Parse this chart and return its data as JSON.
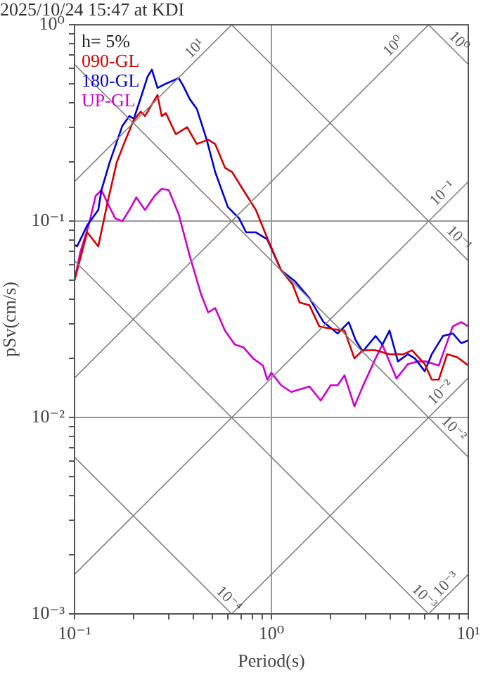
{
  "chart_data": {
    "type": "line",
    "title": "2025/10/24 15:47 at KDI",
    "xlabel": "Period(s)",
    "ylabel": "pSv(cm/s)",
    "log": "xy",
    "grid": true,
    "legend": "top left",
    "marker": "none",
    "line_style": "solid",
    "xlim": [
      0.1,
      10
    ],
    "ylim": [
      0.001,
      1
    ],
    "xticks": [
      {
        "value": 0.1,
        "label": "10⁻¹"
      },
      {
        "value": 0.2,
        "label": null
      },
      {
        "value": 0.3,
        "label": null
      },
      {
        "value": 0.4,
        "label": null
      },
      {
        "value": 0.5,
        "label": null
      },
      {
        "value": 0.6,
        "label": null
      },
      {
        "value": 0.7,
        "label": null
      },
      {
        "value": 0.8,
        "label": null
      },
      {
        "value": 0.9,
        "label": null
      },
      {
        "value": 1,
        "label": "10⁰"
      },
      {
        "value": 2,
        "label": null
      },
      {
        "value": 3,
        "label": null
      },
      {
        "value": 4,
        "label": null
      },
      {
        "value": 5,
        "label": null
      },
      {
        "value": 6,
        "label": null
      },
      {
        "value": 7,
        "label": null
      },
      {
        "value": 8,
        "label": null
      },
      {
        "value": 9,
        "label": null
      },
      {
        "value": 10,
        "label": "10¹"
      }
    ],
    "yticks": [
      {
        "value": 0.001,
        "label": "10⁻³"
      },
      {
        "value": 0.002,
        "label": null
      },
      {
        "value": 0.003,
        "label": null
      },
      {
        "value": 0.004,
        "label": null
      },
      {
        "value": 0.005,
        "label": null
      },
      {
        "value": 0.006,
        "label": null
      },
      {
        "value": 0.007,
        "label": null
      },
      {
        "value": 0.008,
        "label": null
      },
      {
        "value": 0.009,
        "label": null
      },
      {
        "value": 0.01,
        "label": "10⁻²"
      },
      {
        "value": 0.02,
        "label": null
      },
      {
        "value": 0.03,
        "label": null
      },
      {
        "value": 0.04,
        "label": null
      },
      {
        "value": 0.05,
        "label": null
      },
      {
        "value": 0.06,
        "label": null
      },
      {
        "value": 0.07,
        "label": null
      },
      {
        "value": 0.08,
        "label": null
      },
      {
        "value": 0.09,
        "label": null
      },
      {
        "value": 0.1,
        "label": "10⁻¹"
      },
      {
        "value": 0.2,
        "label": null
      },
      {
        "value": 0.3,
        "label": null
      },
      {
        "value": 0.4,
        "label": null
      },
      {
        "value": 0.5,
        "label": null
      },
      {
        "value": 0.6,
        "label": null
      },
      {
        "value": 0.7,
        "label": null
      },
      {
        "value": 0.8,
        "label": null
      },
      {
        "value": 0.9,
        "label": null
      },
      {
        "value": 1,
        "label": "10⁰"
      }
    ],
    "annotations": [
      "h= 5%",
      {
        "text": "10¹",
        "x": 0.44,
        "y": 0.7
      },
      {
        "text": "10⁰",
        "x": 4.5,
        "y": 0.72
      },
      {
        "text": "10⁰",
        "x": 8.3,
        "y": 0.76
      },
      {
        "text": "10⁻¹",
        "x": 8,
        "y": 0.128
      },
      {
        "text": "10⁻¹",
        "x": 8.3,
        "y": 0.0756
      },
      {
        "text": "10⁻²",
        "x": 7.81,
        "y": 0.0124
      },
      {
        "text": "10⁻²",
        "x": 7.81,
        "y": 0.0081
      },
      {
        "text": "10⁻³",
        "x": 8.34,
        "y": 0.00131
      },
      {
        "text": "10⁻³",
        "x": 5.53,
        "y": 0.00113
      },
      {
        "text": "10⁻⁴",
        "x": 0.563,
        "y": 0.0011
      }
    ],
    "series": [
      {
        "color": "#808080",
        "x": [
          0.1,
          0.628
        ],
        "values": [
          0.159,
          1
        ]
      },
      {
        "color": "#808080",
        "x": [
          0.1,
          6.28
        ],
        "values": [
          0.0159,
          1
        ]
      },
      {
        "color": "#808080",
        "x": [
          0.1,
          10
        ],
        "values": [
          0.00159,
          0.159
        ]
      },
      {
        "color": "#808080",
        "x": [
          0.628,
          10
        ],
        "values": [
          0.001,
          0.0159
        ]
      },
      {
        "color": "#808080",
        "x": [
          6.28,
          10
        ],
        "values": [
          0.001,
          0.00159
        ]
      },
      {
        "color": "#808080",
        "x": [
          6.28,
          10
        ],
        "values": [
          1,
          0.628
        ]
      },
      {
        "color": "#808080",
        "x": [
          0.628,
          10
        ],
        "values": [
          1,
          0.0628
        ]
      },
      {
        "color": "#808080",
        "x": [
          0.1,
          10
        ],
        "values": [
          0.628,
          0.00628
        ]
      },
      {
        "color": "#808080",
        "x": [
          0.1,
          6.28
        ],
        "values": [
          0.0628,
          0.001
        ]
      },
      {
        "color": "#808080",
        "x": [
          0.1,
          0.628
        ],
        "values": [
          0.00628,
          0.001
        ]
      },
      {
        "name": "090-GL",
        "color": "#d40000",
        "x": [
          0.1,
          0.116,
          0.132,
          0.148,
          0.164,
          0.178,
          0.2,
          0.217,
          0.228,
          0.264,
          0.277,
          0.291,
          0.327,
          0.373,
          0.418,
          0.477,
          0.518,
          0.581,
          0.631,
          0.72,
          0.834,
          0.952,
          1.12,
          1.28,
          1.39,
          1.56,
          1.75,
          2.06,
          2.35,
          2.64,
          2.91,
          3.38,
          3.98,
          4.69,
          5.18,
          6.01,
          6.52,
          7.08,
          7.81,
          8.77,
          10
        ],
        "values": [
          0.0501,
          0.0877,
          0.0744,
          0.128,
          0.2,
          0.247,
          0.327,
          0.361,
          0.343,
          0.439,
          0.343,
          0.355,
          0.277,
          0.301,
          0.247,
          0.26,
          0.247,
          0.187,
          0.178,
          0.144,
          0.114,
          0.0821,
          0.0562,
          0.0477,
          0.0385,
          0.0373,
          0.0291,
          0.0282,
          0.0277,
          0.02,
          0.022,
          0.022,
          0.021,
          0.021,
          0.022,
          0.0187,
          0.0156,
          0.0156,
          0.021,
          0.0203,
          0.0184
        ]
      },
      {
        "name": "180-GL",
        "color": "#0000dd",
        "x": [
          0.1,
          0.103,
          0.116,
          0.132,
          0.137,
          0.151,
          0.175,
          0.19,
          0.2,
          0.217,
          0.235,
          0.247,
          0.264,
          0.291,
          0.338,
          0.355,
          0.385,
          0.418,
          0.469,
          0.518,
          0.601,
          0.685,
          0.744,
          0.834,
          0.952,
          1.12,
          1.32,
          1.56,
          1.84,
          2.17,
          2.47,
          2.68,
          2.91,
          3.38,
          3.66,
          3.98,
          4.39,
          4.93,
          5.35,
          6.01,
          6.52,
          7.43,
          8.34,
          9.21,
          10
        ],
        "values": [
          0.0756,
          0.0744,
          0.0952,
          0.114,
          0.144,
          0.2,
          0.306,
          0.343,
          0.332,
          0.425,
          0.544,
          0.591,
          0.477,
          0.501,
          0.535,
          0.493,
          0.418,
          0.373,
          0.26,
          0.178,
          0.118,
          0.1033,
          0.0877,
          0.0877,
          0.0808,
          0.0562,
          0.0493,
          0.0405,
          0.0306,
          0.0268,
          0.0306,
          0.0247,
          0.0217,
          0.026,
          0.0235,
          0.0277,
          0.0193,
          0.021,
          0.02,
          0.0172,
          0.021,
          0.026,
          0.0268,
          0.0239,
          0.0247
        ]
      },
      {
        "name": "UP-GL",
        "color": "#d000d0",
        "x": [
          0.1,
          0.107,
          0.118,
          0.128,
          0.137,
          0.148,
          0.161,
          0.175,
          0.19,
          0.206,
          0.228,
          0.255,
          0.277,
          0.301,
          0.338,
          0.385,
          0.439,
          0.477,
          0.518,
          0.581,
          0.652,
          0.72,
          0.807,
          0.906,
          0.952,
          1,
          1.12,
          1.26,
          1.39,
          1.56,
          1.78,
          2,
          2.17,
          2.35,
          2.64,
          2.91,
          3.38,
          3.66,
          4.32,
          4.93,
          5.53,
          6.11,
          7.08,
          8.34,
          9.21,
          10
        ],
        "values": [
          0.0501,
          0.0696,
          0.0952,
          0.1345,
          0.144,
          0.122,
          0.1033,
          0.1,
          0.114,
          0.132,
          0.114,
          0.1345,
          0.146,
          0.144,
          0.1086,
          0.0663,
          0.0425,
          0.0343,
          0.0361,
          0.0277,
          0.0235,
          0.0228,
          0.02,
          0.0184,
          0.0156,
          0.0169,
          0.0146,
          0.0135,
          0.0139,
          0.0144,
          0.0122,
          0.0146,
          0.0146,
          0.0164,
          0.0114,
          0.0144,
          0.02,
          0.0235,
          0.0158,
          0.0187,
          0.0193,
          0.0193,
          0.0184,
          0.0291,
          0.0306,
          0.0291
        ]
      }
    ]
  }
}
